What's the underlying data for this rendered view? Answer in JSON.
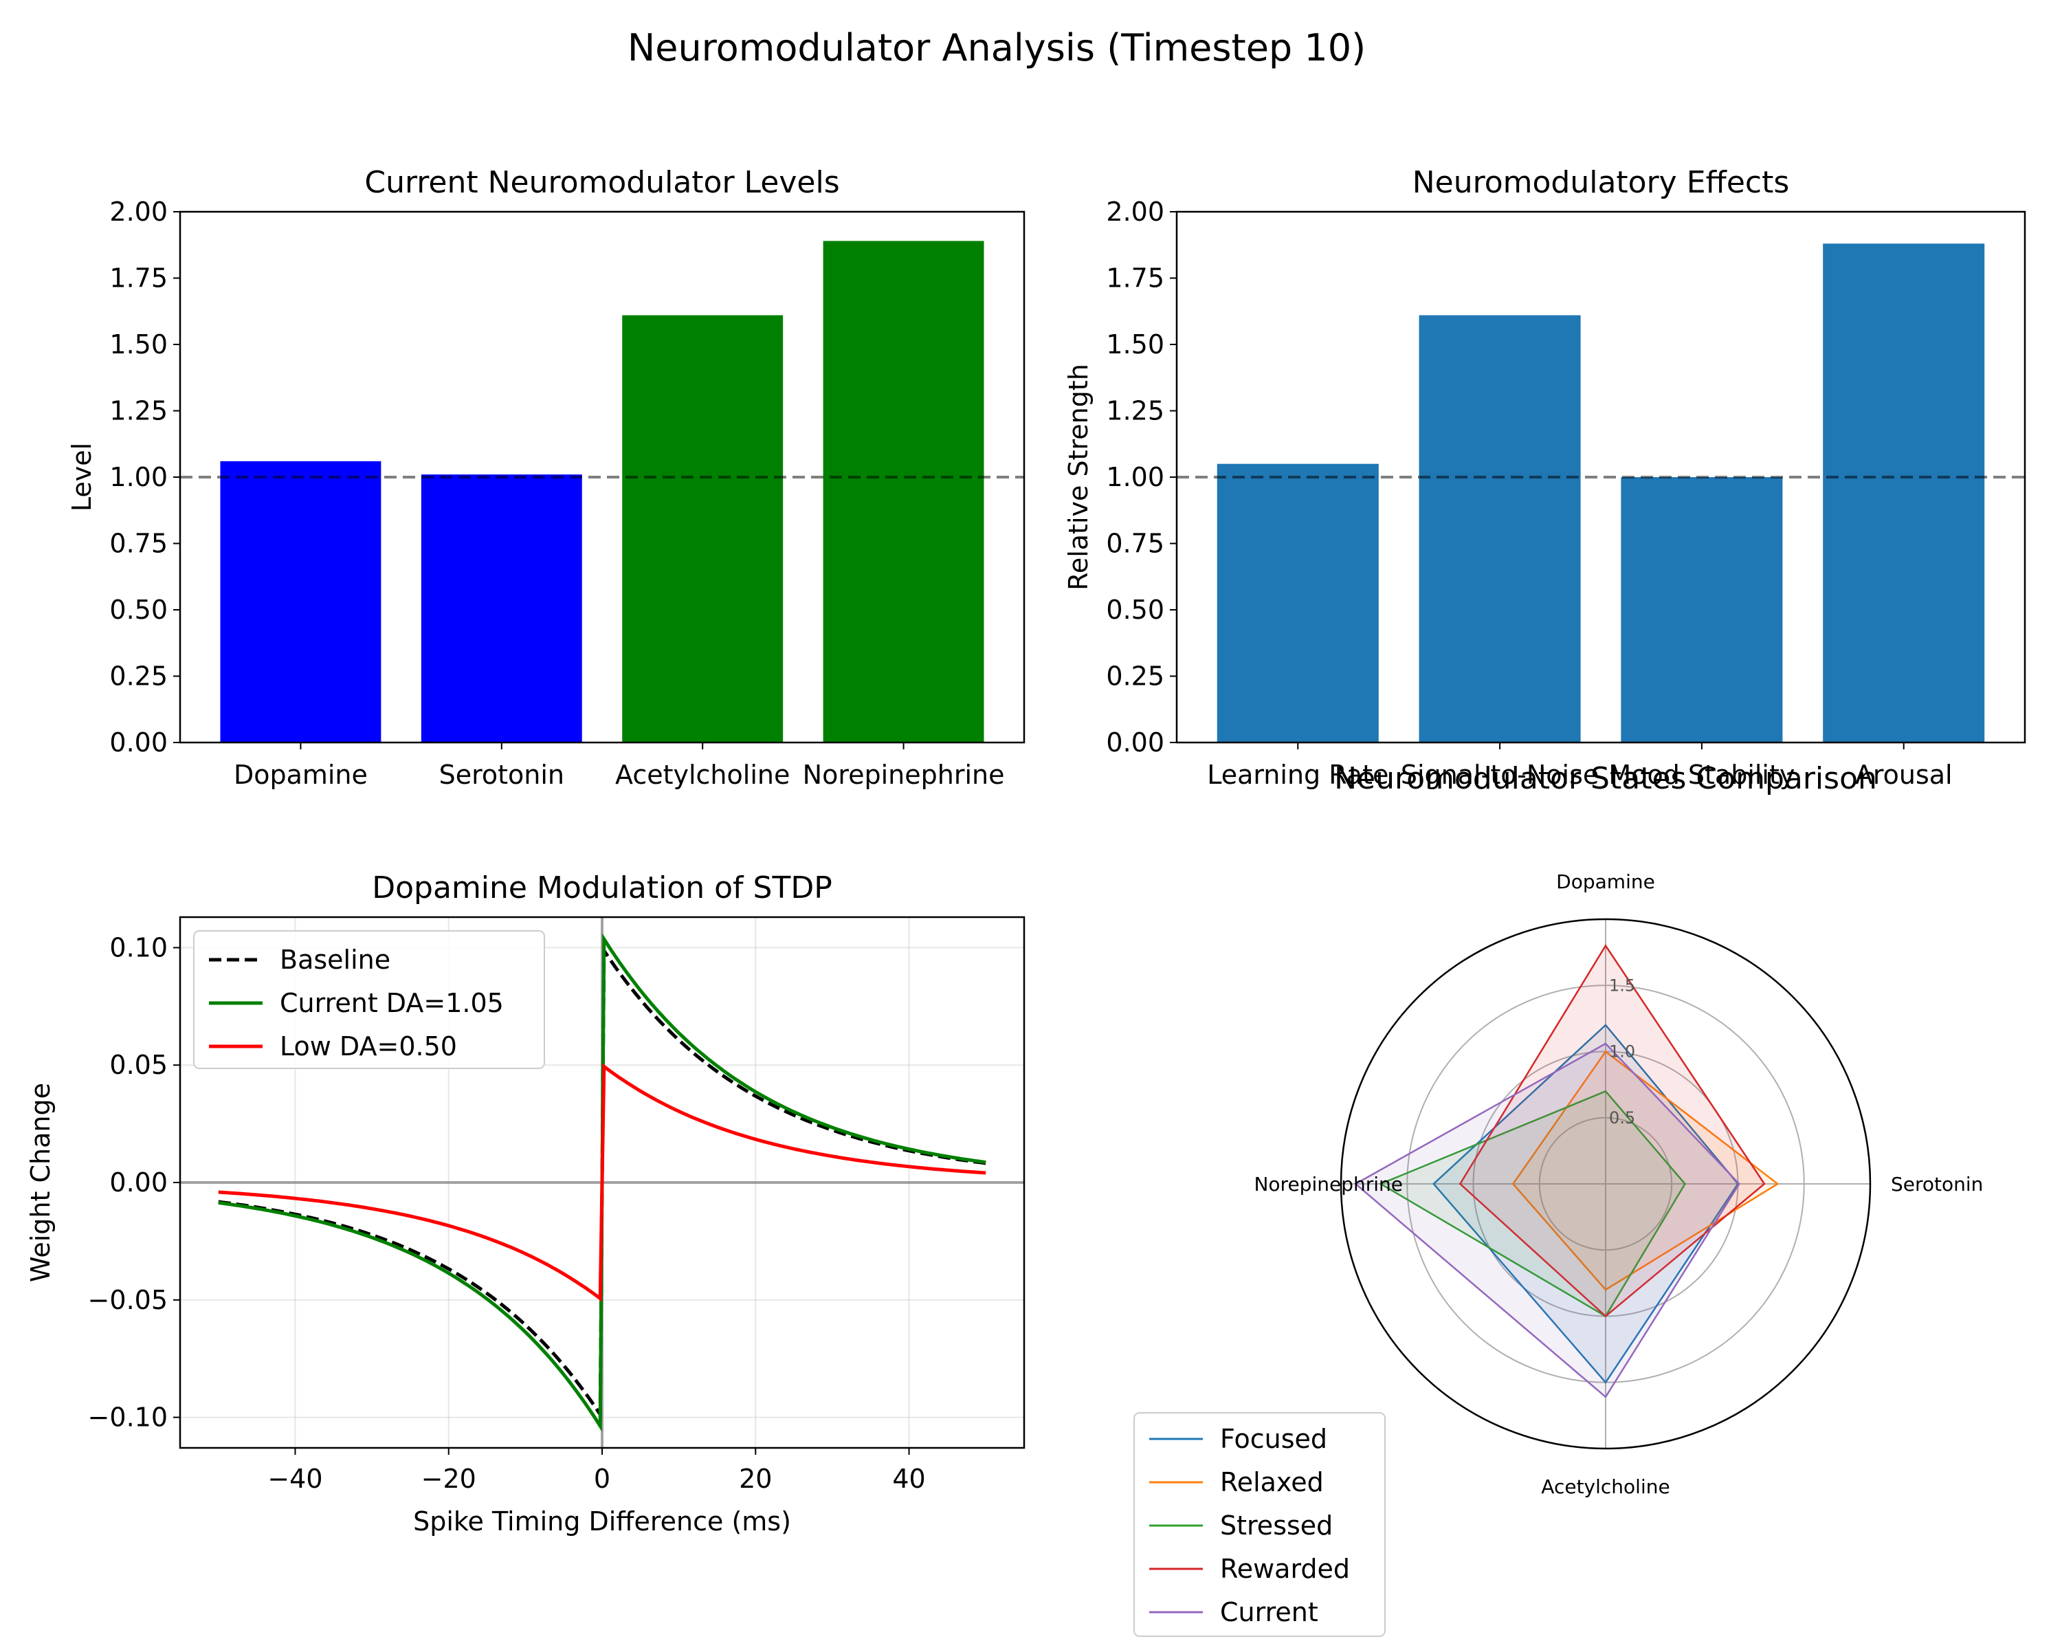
{
  "suptitle": "Neuromodulator Analysis (Timestep 10)",
  "chart_data": [
    {
      "type": "bar",
      "title": "Current Neuromodulator Levels",
      "xlabel": "",
      "ylabel": "Level",
      "categories": [
        "Dopamine",
        "Serotonin",
        "Acetylcholine",
        "Norepinephrine"
      ],
      "values": [
        1.06,
        1.01,
        1.61,
        1.89
      ],
      "bar_colors": [
        "#0000ff",
        "#0000ff",
        "#008000",
        "#008000"
      ],
      "ylim": [
        0,
        2.0
      ],
      "yticks": [
        "0.00",
        "0.25",
        "0.50",
        "0.75",
        "1.00",
        "1.25",
        "1.50",
        "1.75",
        "2.00"
      ],
      "reference_line": 1.0
    },
    {
      "type": "bar",
      "title": "Neuromodulatory Effects",
      "xlabel": "",
      "ylabel": "Relative Strength",
      "categories": [
        "Learning Rate",
        "Signal-to-Noise",
        "Mood Stability",
        "Arousal"
      ],
      "values": [
        1.05,
        1.61,
        1.0,
        1.88
      ],
      "bar_colors": [
        "#1f77b4",
        "#1f77b4",
        "#1f77b4",
        "#1f77b4"
      ],
      "ylim": [
        0,
        2.0
      ],
      "yticks": [
        "0.00",
        "0.25",
        "0.50",
        "0.75",
        "1.00",
        "1.25",
        "1.50",
        "1.75",
        "2.00"
      ],
      "reference_line": 1.0
    },
    {
      "type": "line",
      "title": "Dopamine Modulation of STDP",
      "xlabel": "Spike Timing Difference (ms)",
      "ylabel": "Weight Change",
      "xlim": [
        -55,
        55
      ],
      "ylim": [
        -0.113,
        0.113
      ],
      "xticks": [
        -40,
        -20,
        0,
        20,
        40
      ],
      "yticks": [
        -0.1,
        -0.05,
        0.0,
        0.05,
        0.1
      ],
      "ytick_labels": [
        "−0.10",
        "−0.05",
        "0.00",
        "0.05",
        "0.10"
      ],
      "xtick_labels": [
        "−40",
        "−20",
        "0",
        "20",
        "40"
      ],
      "grid": true,
      "legend_position": "top-left",
      "x_range": [
        -50,
        50
      ],
      "tau": 20,
      "series": [
        {
          "name": "Baseline",
          "amplitude": 0.1,
          "color": "#000000",
          "dash": true
        },
        {
          "name": "Current DA=1.05",
          "amplitude": 0.105,
          "color": "#008000",
          "dash": false
        },
        {
          "name": "Low DA=0.50",
          "amplitude": 0.05,
          "color": "#ff0000",
          "dash": false
        }
      ]
    },
    {
      "type": "radar",
      "title": "Neuromodulator States Comparison",
      "axes": [
        "Dopamine",
        "Serotonin",
        "Acetylcholine",
        "Norepinephrine"
      ],
      "rmax": 2.0,
      "rticks": [
        0.5,
        1.0,
        1.5
      ],
      "rtick_labels": [
        "0.5",
        "1.0",
        "1.5"
      ],
      "legend_position": "lower-left",
      "series": [
        {
          "name": "Focused",
          "color": "#1f77b4",
          "values": [
            1.2,
            1.0,
            1.5,
            1.3
          ]
        },
        {
          "name": "Relaxed",
          "color": "#ff7f0e",
          "values": [
            1.0,
            1.3,
            0.8,
            0.7
          ]
        },
        {
          "name": "Stressed",
          "color": "#2ca02c",
          "values": [
            0.7,
            0.6,
            1.0,
            1.7
          ]
        },
        {
          "name": "Rewarded",
          "color": "#d62728",
          "values": [
            1.8,
            1.2,
            1.0,
            1.1
          ]
        },
        {
          "name": "Current",
          "color": "#9467bd",
          "values": [
            1.06,
            1.01,
            1.61,
            1.89
          ]
        }
      ]
    }
  ]
}
